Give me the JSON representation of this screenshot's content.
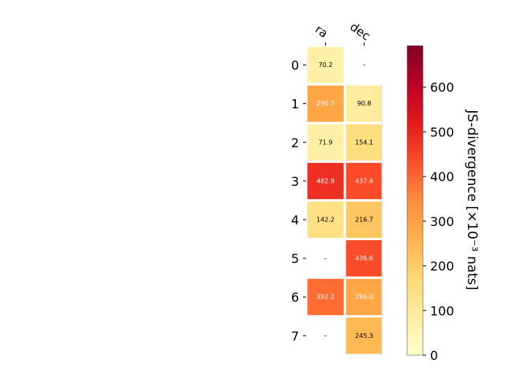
{
  "chart_data": {
    "type": "heatmap",
    "columns": [
      "ra",
      "dec"
    ],
    "rows": [
      "0",
      "1",
      "2",
      "3",
      "4",
      "5",
      "6",
      "7"
    ],
    "values": [
      [
        70.2,
        null
      ],
      [
        290.7,
        90.8
      ],
      [
        71.9,
        154.1
      ],
      [
        482.9,
        437.4
      ],
      [
        142.2,
        216.7
      ],
      [
        null,
        436.6
      ],
      [
        392.2,
        286.0
      ],
      [
        null,
        245.3
      ]
    ],
    "cell_labels": [
      [
        "70.2",
        "–"
      ],
      [
        "290.7",
        "90.8"
      ],
      [
        "71.9",
        "154.1"
      ],
      [
        "482.9",
        "437.4"
      ],
      [
        "142.2",
        "216.7"
      ],
      [
        "–",
        "436.6"
      ],
      [
        "392.2",
        "286.0"
      ],
      [
        "–",
        "245.3"
      ]
    ],
    "colorbar": {
      "label": "JS-divergence [×10⁻³ nats]",
      "min": 0,
      "max": 693,
      "ticks": [
        0,
        100,
        200,
        300,
        400,
        500,
        600
      ],
      "colormap": "YlOrRd"
    }
  }
}
